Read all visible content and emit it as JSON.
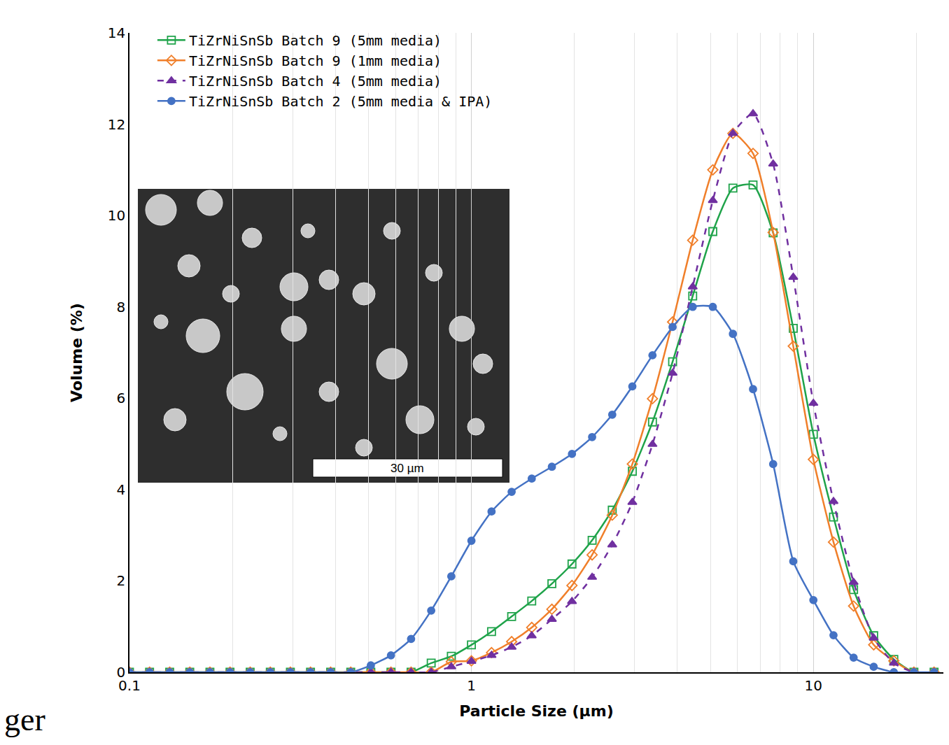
{
  "chart_data": {
    "type": "line",
    "x_label": "Particle Size (µm)",
    "y_label": "Volume (%)",
    "log": "x",
    "grid": "x",
    "legend": "top-left",
    "xlim": [
      0.1,
      24
    ],
    "xticks": [
      0.1,
      1,
      10
    ],
    "ylim": [
      0,
      14
    ],
    "yticks": [
      0,
      2,
      4,
      6,
      8,
      10,
      12,
      14
    ],
    "x": [
      0.1,
      0.1145,
      0.1311,
      0.1501,
      0.1719,
      0.1968,
      0.2254,
      0.2581,
      0.2955,
      0.3384,
      0.3875,
      0.4437,
      0.508,
      0.5817,
      0.6661,
      0.7627,
      0.8733,
      1,
      1.145,
      1.311,
      1.501,
      1.719,
      1.968,
      2.254,
      2.581,
      2.955,
      3.384,
      3.875,
      4.437,
      5.08,
      5.817,
      6.661,
      7.627,
      8.733,
      10,
      11.45,
      13.11,
      15.01,
      17.19,
      19.68,
      22.54
    ],
    "series": [
      {
        "name": "TiZrNiSnSb Batch 9 (5mm media)",
        "color": "#1fa34a",
        "marker": "square-open",
        "line_style": "solid",
        "values": [
          0,
          0,
          0,
          0,
          0,
          0,
          0,
          0,
          0,
          0,
          0,
          0,
          0,
          0,
          0,
          0.2,
          0.35,
          0.6,
          0.89,
          1.22,
          1.56,
          1.94,
          2.37,
          2.89,
          3.55,
          4.4,
          5.48,
          6.8,
          8.24,
          9.65,
          10.6,
          10.67,
          9.62,
          7.53,
          5.21,
          3.4,
          1.81,
          0.8,
          0.28,
          0,
          0
        ]
      },
      {
        "name": "TiZrNiSnSb Batch 9 (1mm media)",
        "color": "#f07f2a",
        "marker": "diamond-open",
        "line_style": "solid",
        "values": [
          0,
          0,
          0,
          0,
          0,
          0,
          0,
          0,
          0,
          0,
          0,
          0,
          0,
          0,
          0,
          0,
          0.23,
          0.25,
          0.43,
          0.67,
          0.98,
          1.38,
          1.9,
          2.57,
          3.44,
          4.56,
          5.99,
          7.67,
          9.46,
          11.0,
          11.8,
          11.36,
          9.63,
          7.14,
          4.66,
          2.85,
          1.45,
          0.6,
          0.25,
          0,
          0
        ]
      },
      {
        "name": "TiZrNiSnSb Batch 4 (5mm media)",
        "color": "#7030a0",
        "marker": "triangle-up",
        "line_style": "dash",
        "values": [
          0,
          0,
          0,
          0,
          0,
          0,
          0,
          0,
          0,
          0,
          0,
          0,
          0,
          0,
          0,
          0,
          0.12,
          0.24,
          0.37,
          0.55,
          0.8,
          1.16,
          1.55,
          2.08,
          2.79,
          3.72,
          4.99,
          6.55,
          8.44,
          10.33,
          11.8,
          12.23,
          11.13,
          8.65,
          5.89,
          3.74,
          1.97,
          0.75,
          0.2,
          0,
          0
        ]
      },
      {
        "name": "TiZrNiSnSb Batch 2 (5mm media & IPA)",
        "color": "#4472c4",
        "marker": "circle",
        "line_style": "solid",
        "values": [
          0,
          0,
          0,
          0,
          0,
          0,
          0,
          0,
          0,
          0,
          0,
          0,
          0.15,
          0.37,
          0.73,
          1.35,
          2.1,
          2.88,
          3.52,
          3.95,
          4.24,
          4.5,
          4.78,
          5.15,
          5.64,
          6.26,
          6.94,
          7.56,
          8.0,
          8.0,
          7.41,
          6.2,
          4.56,
          2.43,
          1.58,
          0.81,
          0.32,
          0.12,
          0,
          0,
          0
        ]
      }
    ],
    "annotations": [
      {
        "text": "30 µm"
      },
      {
        "text": "ger"
      }
    ]
  }
}
